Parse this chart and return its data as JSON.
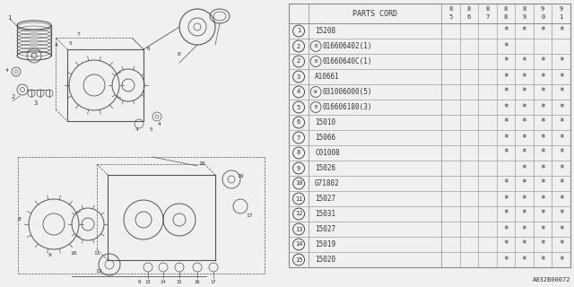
{
  "title": "A032B00072",
  "table_header": "PARTS CORD",
  "year_cols": [
    "8\n5",
    "8\n6",
    "8\n7",
    "8\n8",
    "8\n9",
    "9\n0",
    "9\n1"
  ],
  "rows": [
    {
      "num": "1",
      "prefix": "",
      "code": "15208",
      "stars": [
        false,
        false,
        false,
        true,
        true,
        true,
        true
      ]
    },
    {
      "num": "2",
      "prefix": "B",
      "code": "016606402(1)",
      "stars": [
        false,
        false,
        false,
        true,
        false,
        false,
        false
      ]
    },
    {
      "num": "2",
      "prefix": "B",
      "code": "01660640C(1)",
      "stars": [
        false,
        false,
        false,
        true,
        true,
        true,
        true
      ]
    },
    {
      "num": "3",
      "prefix": "",
      "code": "A10661",
      "stars": [
        false,
        false,
        false,
        true,
        true,
        true,
        true
      ]
    },
    {
      "num": "4",
      "prefix": "W",
      "code": "031006000(5)",
      "stars": [
        false,
        false,
        false,
        true,
        true,
        true,
        true
      ]
    },
    {
      "num": "5",
      "prefix": "B",
      "code": "016606180(3)",
      "stars": [
        false,
        false,
        false,
        true,
        true,
        true,
        true
      ]
    },
    {
      "num": "6",
      "prefix": "",
      "code": "15010",
      "stars": [
        false,
        false,
        false,
        true,
        true,
        true,
        true
      ]
    },
    {
      "num": "7",
      "prefix": "",
      "code": "15066",
      "stars": [
        false,
        false,
        false,
        true,
        true,
        true,
        true
      ]
    },
    {
      "num": "8",
      "prefix": "",
      "code": "C01008",
      "stars": [
        false,
        false,
        false,
        true,
        true,
        true,
        true
      ]
    },
    {
      "num": "9",
      "prefix": "",
      "code": "15026",
      "stars": [
        false,
        false,
        false,
        false,
        true,
        true,
        true
      ]
    },
    {
      "num": "10",
      "prefix": "",
      "code": "G71802",
      "stars": [
        false,
        false,
        false,
        true,
        true,
        true,
        true
      ]
    },
    {
      "num": "11",
      "prefix": "",
      "code": "15027",
      "stars": [
        false,
        false,
        false,
        true,
        true,
        true,
        true
      ]
    },
    {
      "num": "12",
      "prefix": "",
      "code": "15031",
      "stars": [
        false,
        false,
        false,
        true,
        true,
        true,
        true
      ]
    },
    {
      "num": "13",
      "prefix": "",
      "code": "15027",
      "stars": [
        false,
        false,
        false,
        true,
        true,
        true,
        true
      ]
    },
    {
      "num": "14",
      "prefix": "",
      "code": "15019",
      "stars": [
        false,
        false,
        false,
        true,
        true,
        true,
        true
      ]
    },
    {
      "num": "15",
      "prefix": "",
      "code": "15020",
      "stars": [
        false,
        false,
        false,
        true,
        true,
        true,
        true
      ]
    }
  ],
  "bg_color": "#f0f0f0",
  "line_color": "#555555",
  "text_color": "#333333",
  "table_line_color": "#888888"
}
